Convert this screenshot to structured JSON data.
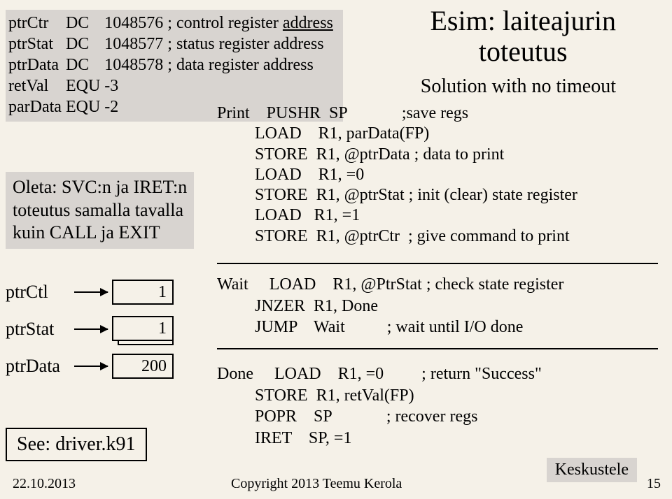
{
  "title_l1": "Esim: laiteajurin",
  "title_l2": "toteutus",
  "subtitle": "Solution with no timeout",
  "decl": {
    "rows": [
      [
        "ptrCtr",
        "DC",
        "1048576",
        "; control register "
      ],
      [
        "ptrStat",
        "DC",
        "1048577",
        "; status register address"
      ],
      [
        "ptrData",
        "DC",
        "1048578",
        "; data register address"
      ],
      [
        "retVal",
        "EQU",
        "-3",
        ""
      ],
      [
        "parData",
        "EQU",
        "-2",
        ""
      ]
    ],
    "addr_word": "address"
  },
  "oleta_l1": "Oleta: SVC:n ja IRET:n",
  "oleta_l2": "toteutus samalla tavalla",
  "oleta_l3": "kuin CALL ja EXIT",
  "print_block": "Print    PUSHR  SP             ;save regs\n         LOAD    R1, parData(FP)\n         STORE  R1, @ptrData ; data to print\n         LOAD    R1, =0\n         STORE  R1, @ptrStat ; init (clear) state register\n         LOAD   R1, =1\n         STORE  R1, @ptrCtr  ; give command to print",
  "wait_block": "Wait     LOAD    R1, @PtrStat ; check state register\n         JNZER  R1, Done\n         JUMP    Wait          ; wait until I/O done",
  "done_block": "Done     LOAD    R1, =0         ; return \"Success\"\n         STORE  R1, retVal(FP)\n         POPR    SP             ; recover regs\n         IRET    SP, =1",
  "ptrCtl_label": "ptrCtl",
  "ptrCtl_val": "1",
  "ptrStat_label": "ptrStat",
  "ptrStat_val": "1",
  "ptrData_label": "ptrData",
  "ptrData_val": "200",
  "see_label": "See:  driver.k91",
  "footer_date": "22.10.2013",
  "footer_copy": "Copyright 2013 Teemu Kerola",
  "page_num": "15",
  "keskustele": "Keskustele"
}
